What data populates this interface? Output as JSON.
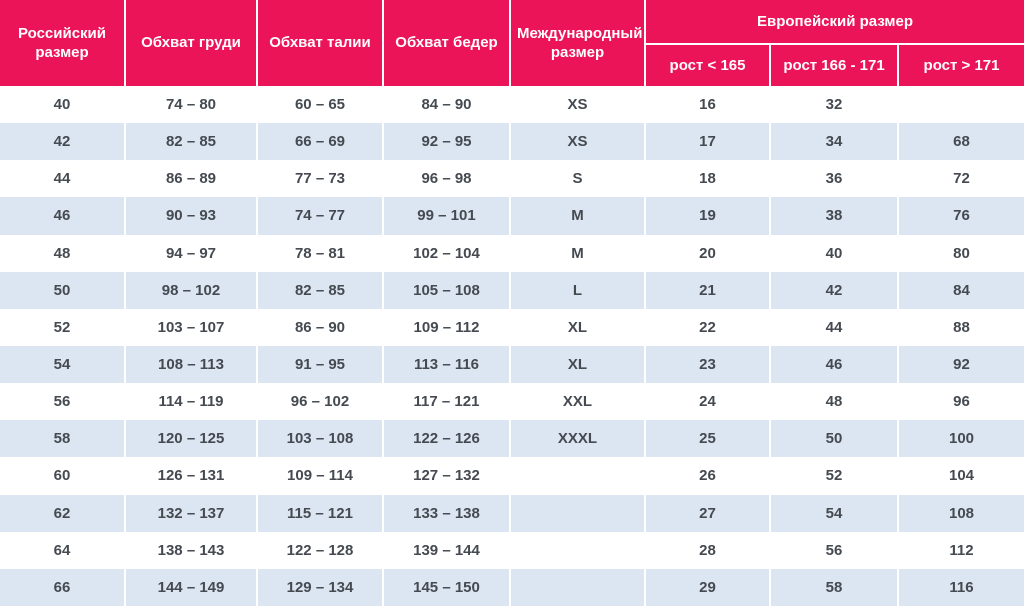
{
  "colors": {
    "header_bg": "#ec1459",
    "header_text": "#ffffff",
    "row_odd_bg": "#ffffff",
    "row_even_bg": "#dce6f2",
    "body_text": "#454a51",
    "separator": "#ffffff"
  },
  "chart_data": {
    "type": "table",
    "header": {
      "russian_size": "Российский размер",
      "chest": "Обхват груди",
      "waist": "Обхват талии",
      "hips": "Обхват бедер",
      "international_size": "Международный размер",
      "european_size_group": "Европейский размер",
      "height_lt_165": "рост < 165",
      "height_166_171": "рост 166 - 171",
      "height_gt_171": "рост > 171"
    },
    "column_keys": [
      "russian-size",
      "chest",
      "waist",
      "hips",
      "international-size",
      "height-lt-165",
      "height-166-171",
      "height-gt-171"
    ],
    "rows": [
      [
        "40",
        "74 – 80",
        "60 – 65",
        "84 – 90",
        "XS",
        "16",
        "32",
        ""
      ],
      [
        "42",
        "82 – 85",
        "66 – 69",
        "92 – 95",
        "XS",
        "17",
        "34",
        "68"
      ],
      [
        "44",
        "86 – 89",
        "77 – 73",
        "96 – 98",
        "S",
        "18",
        "36",
        "72"
      ],
      [
        "46",
        "90 – 93",
        "74 – 77",
        "99 – 101",
        "M",
        "19",
        "38",
        "76"
      ],
      [
        "48",
        "94 – 97",
        "78 – 81",
        "102 – 104",
        "M",
        "20",
        "40",
        "80"
      ],
      [
        "50",
        "98 – 102",
        "82 – 85",
        "105 – 108",
        "L",
        "21",
        "42",
        "84"
      ],
      [
        "52",
        "103 – 107",
        "86 – 90",
        "109 – 112",
        "XL",
        "22",
        "44",
        "88"
      ],
      [
        "54",
        "108 – 113",
        "91 – 95",
        "113 – 116",
        "XL",
        "23",
        "46",
        "92"
      ],
      [
        "56",
        "114 – 119",
        "96 – 102",
        "117 – 121",
        "XXL",
        "24",
        "48",
        "96"
      ],
      [
        "58",
        "120 – 125",
        "103 – 108",
        "122 – 126",
        "XXXL",
        "25",
        "50",
        "100"
      ],
      [
        "60",
        "126 – 131",
        "109 – 114",
        "127 – 132",
        "",
        "26",
        "52",
        "104"
      ],
      [
        "62",
        "132 – 137",
        "115 – 121",
        "133 – 138",
        "",
        "27",
        "54",
        "108"
      ],
      [
        "64",
        "138 – 143",
        "122 – 128",
        "139 – 144",
        "",
        "28",
        "56",
        "112"
      ],
      [
        "66",
        "144 – 149",
        "129 – 134",
        "145 – 150",
        "",
        "29",
        "58",
        "116"
      ]
    ]
  }
}
